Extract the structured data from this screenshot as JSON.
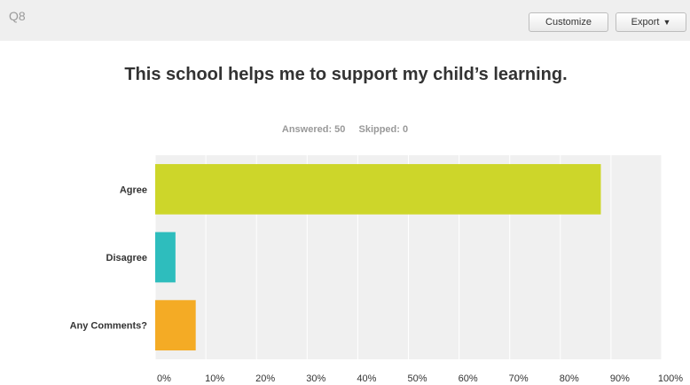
{
  "header": {
    "question_number": "Q8",
    "customize_label": "Customize",
    "export_label": "Export"
  },
  "stats": {
    "answered_label": "Answered: 50",
    "skipped_label": "Skipped: 0"
  },
  "chart_data": {
    "type": "bar",
    "orientation": "horizontal",
    "title": "This school helps me to support my child’s learning.",
    "categories": [
      "Agree",
      "Disagree",
      "Any Comments?"
    ],
    "values": [
      88,
      4,
      8
    ],
    "xlim": [
      0,
      100
    ],
    "x_ticks": [
      0,
      10,
      20,
      30,
      40,
      50,
      60,
      70,
      80,
      90,
      100
    ],
    "x_tick_labels": [
      "0%",
      "10%",
      "20%",
      "30%",
      "40%",
      "50%",
      "60%",
      "70%",
      "80%",
      "90%",
      "100%"
    ],
    "colors": [
      "#cdd62a",
      "#2ebdbd",
      "#f4ab25"
    ],
    "grid": true,
    "legend": "none"
  }
}
